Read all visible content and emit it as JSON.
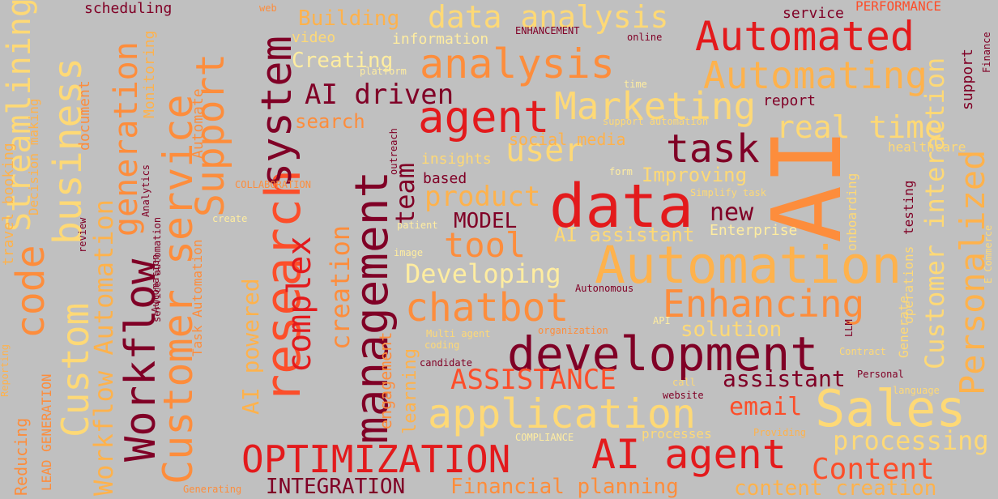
{
  "words": [
    "AI",
    "data",
    "development",
    "Automation",
    "OPTIMIZATION",
    "AI agent",
    "management",
    "research",
    "Customer service",
    "Workflow",
    "system",
    "business",
    "code",
    "Support",
    "analysis",
    "Automated",
    "Automating",
    "Sales",
    "application",
    "chatbot",
    "agent",
    "task",
    "Marketing",
    "Enhancing",
    "Personalized",
    "Custom",
    "generation",
    "Streamlining",
    "Workflow Automation",
    "data analysis",
    "real time",
    "Customer interaction",
    "complex",
    "creation",
    "team",
    "user",
    "product",
    "tool",
    "Developing",
    "Content",
    "processing",
    "ASSISTANCE",
    "assistant",
    "email",
    "solution",
    "Financial planning",
    "INTEGRATION",
    "content creation",
    "AI driven",
    "MODEL",
    "new",
    "AI assistant",
    "Improving",
    "social media",
    "search",
    "Creating",
    "Building",
    "AI powered",
    "engagement",
    "learning",
    "Reducing",
    "LEAD GENERATION",
    "travel booking",
    "scheduling",
    "information",
    "video",
    "service",
    "PERFORMANCE",
    "support",
    "report",
    "insights",
    "based",
    "healthcare",
    "Enterprise",
    "Generate",
    "operations",
    "testing",
    "onboarding",
    "document",
    "Monitoring",
    "Automate",
    "Decision making",
    "Analytics",
    "review",
    "service automation",
    "Task Automation",
    "Reporting",
    "COLLABORATION",
    "create",
    "patient",
    "image",
    "outreach",
    "platform",
    "web",
    "ENHANCEMENT",
    "online",
    "time",
    "support automation",
    "form",
    "Simplify task",
    "Autonomous",
    "API",
    "LLM",
    "organization",
    "Multi agent",
    "coding",
    "candidate",
    "call",
    "website",
    "COMPLIANCE",
    "Providing",
    "processes",
    "Personal",
    "Contract",
    "language",
    "Finance",
    "E Commerce",
    "Generating",
    "Automation"
  ],
  "colors": {
    "background": "#c0c0c0",
    "dark_red": "#800026",
    "red": "#e31a1c",
    "orange_red": "#fc4e2a",
    "orange": "#fd8d3c",
    "light_orange": "#feb24c",
    "yellow": "#fed976",
    "pale_yellow": "#ffeda0"
  }
}
